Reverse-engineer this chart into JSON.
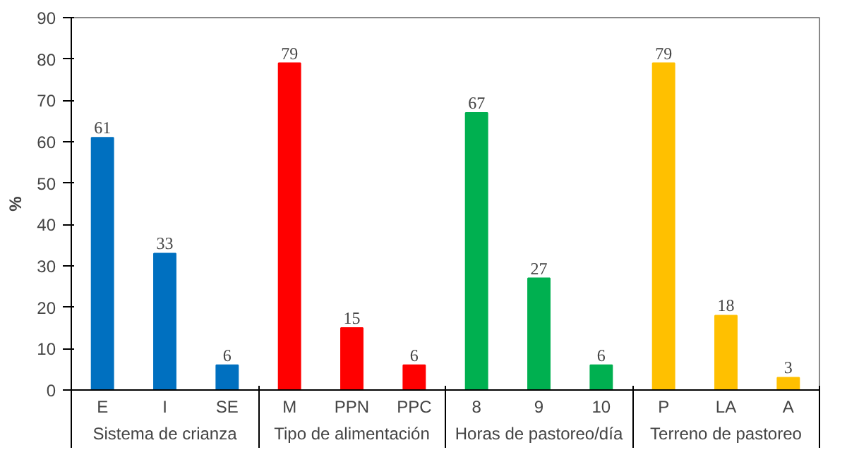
{
  "chart_data": {
    "type": "bar",
    "ylabel": "%",
    "categories": [
      "E",
      "I",
      "SE",
      "M",
      "PPN",
      "PPC",
      "8",
      "9",
      "10",
      "P",
      "LA",
      "A"
    ],
    "series": [
      {
        "name": "Sistema de crianza",
        "color": "#0070c0",
        "values": [
          61,
          33,
          6,
          null,
          null,
          null,
          null,
          null,
          null,
          null,
          null,
          null
        ]
      },
      {
        "name": "Tipo de alimentación",
        "color": "#ff0000",
        "values": [
          null,
          null,
          null,
          79,
          15,
          6,
          null,
          null,
          null,
          null,
          null,
          null
        ]
      },
      {
        "name": "Horas de pastoreo/día",
        "color": "#00b050",
        "values": [
          null,
          null,
          null,
          null,
          null,
          null,
          67,
          27,
          6,
          null,
          null,
          null
        ]
      },
      {
        "name": "Terreno de pastoreo",
        "color": "#ffc000",
        "values": [
          null,
          null,
          null,
          null,
          null,
          null,
          null,
          null,
          null,
          79,
          18,
          3
        ]
      }
    ],
    "ylim": [
      0,
      90
    ],
    "yticks": [
      0,
      10,
      20,
      30,
      40,
      50,
      60,
      70,
      80,
      90
    ],
    "data_labels": true,
    "grid": false
  }
}
